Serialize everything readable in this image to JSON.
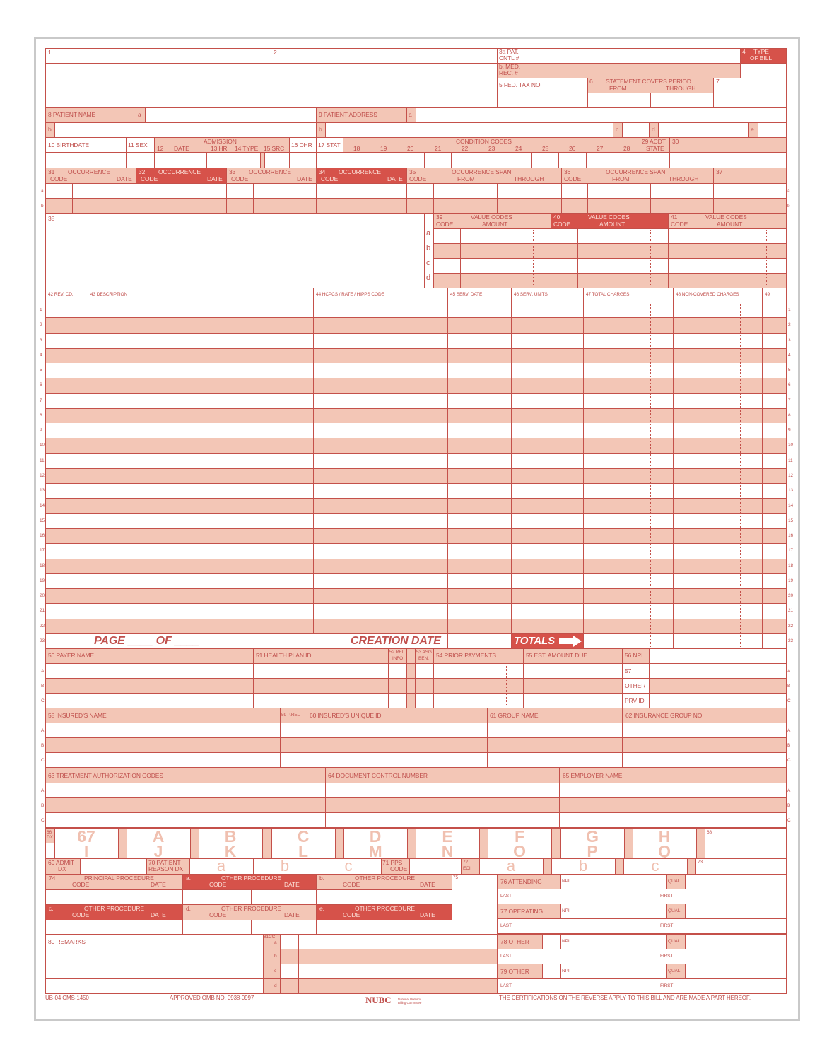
{
  "top": {
    "f1": "1",
    "f2": "2",
    "f3a_1": "3a PAT.",
    "f3a_2": "CNTL #",
    "f3b_1": "b. MED.",
    "f3b_2": "REC. #",
    "f4_num": "4",
    "f4_1": "TYPE",
    "f4_2": "OF BILL",
    "f5": "5 FED. TAX NO.",
    "f6_num": "6",
    "f6_title": "STATEMENT COVERS PERIOD",
    "f6_from": "FROM",
    "f6_through": "THROUGH",
    "f7": "7"
  },
  "patient": {
    "f8": "8 PATIENT  NAME",
    "f8a": "a",
    "f8b": "b",
    "f9": "9 PATIENT  ADDRESS",
    "f9a": "a",
    "f9b": "b",
    "f9c": "c",
    "f9d": "d",
    "f9e": "e"
  },
  "admission": {
    "f10": "10 BIRTHDATE",
    "f11": "11 SEX",
    "title": "ADMISSION",
    "f12": "12",
    "f12_date": "DATE",
    "f13": "13 HR",
    "f14": "14 TYPE",
    "f15": "15 SRC",
    "f16": "16 DHR",
    "f17": "17 STAT",
    "cond_title": "CONDITION CODES",
    "cond_codes": [
      "18",
      "19",
      "20",
      "21",
      "22",
      "23",
      "24",
      "25",
      "26",
      "27",
      "28"
    ],
    "f29_1": "29 ACDT",
    "f29_2": "STATE",
    "f30": "30"
  },
  "occurrence": [
    {
      "num": "31",
      "title": "OCCURRENCE",
      "code": "CODE",
      "date": "DATE"
    },
    {
      "num": "32",
      "title": "OCCURRENCE",
      "code": "CODE",
      "date": "DATE"
    },
    {
      "num": "33",
      "title": "OCCURRENCE",
      "code": "CODE",
      "date": "DATE"
    },
    {
      "num": "34",
      "title": "OCCURRENCE",
      "code": "CODE",
      "date": "DATE"
    }
  ],
  "occurrence_span": [
    {
      "num": "35",
      "title": "OCCURRENCE SPAN",
      "code": "CODE",
      "from": "FROM",
      "through": "THROUGH"
    },
    {
      "num": "36",
      "title": "OCCURRENCE SPAN",
      "code": "CODE",
      "from": "FROM",
      "through": "THROUGH"
    }
  ],
  "f37": "37",
  "row_letters_ab": [
    "a",
    "b"
  ],
  "f38": "38",
  "value_codes": {
    "row_letters": [
      "a",
      "b",
      "c",
      "d"
    ],
    "groups": [
      {
        "num": "39",
        "title": "VALUE CODES",
        "code": "CODE",
        "amount": "AMOUNT"
      },
      {
        "num": "40",
        "title": "VALUE CODES",
        "code": "CODE",
        "amount": "AMOUNT"
      },
      {
        "num": "41",
        "title": "VALUE CODES",
        "code": "CODE",
        "amount": "AMOUNT"
      }
    ]
  },
  "line_items": {
    "headers": [
      "42 REV. CD.",
      "43 DESCRIPTION",
      "44 HCPCS / RATE / HIPPS CODE",
      "45 SERV. DATE",
      "46 SERV. UNITS",
      "47 TOTAL CHARGES",
      "48 NON-COVERED CHARGES",
      "49"
    ],
    "line_numbers": [
      "1",
      "2",
      "3",
      "4",
      "5",
      "6",
      "7",
      "8",
      "9",
      "10",
      "11",
      "12",
      "13",
      "14",
      "15",
      "16",
      "17",
      "18",
      "19",
      "20",
      "21",
      "22",
      "23"
    ],
    "page_label": "PAGE ____  OF ____",
    "creation_date": "CREATION DATE",
    "totals": "TOTALS"
  },
  "payer": {
    "f50": "50 PAYER  NAME",
    "f51": "51 HEALTH PLAN ID",
    "f52_1": "52 REL.",
    "f52_2": "INFO",
    "f53_1": "53 ASG.",
    "f53_2": "BEN.",
    "f54": "54 PRIOR PAYMENTS",
    "f55": "55 EST. AMOUNT DUE",
    "f56": "56 NPI",
    "f57_1": "57",
    "f57_2": "OTHER",
    "f57_3": "PRV  ID",
    "row_letters": [
      "A",
      "B",
      "C"
    ]
  },
  "insured": {
    "f58": "58 INSURED'S NAME",
    "f59": "59 P.REL",
    "f60": "60 INSURED'S UNIQUE ID",
    "f61": "61 GROUP NAME",
    "f62": "62 INSURANCE GROUP NO."
  },
  "auth": {
    "f63": "63 TREATMENT  AUTHORIZATION  CODES",
    "f64": "64 DOCUMENT CONTROL NUMBER",
    "f65": "65 EMPLOYER NAME"
  },
  "diagnosis": {
    "f66_1": "66",
    "f66_2": "DX",
    "top_letters": [
      "67",
      "A",
      "B",
      "C",
      "D",
      "E",
      "F",
      "G",
      "H"
    ],
    "bottom_letters": [
      "I",
      "J",
      "K",
      "L",
      "M",
      "N",
      "O",
      "P",
      "Q"
    ],
    "f68": "68",
    "f69_1": "69 ADMIT",
    "f69_2": "DX",
    "f70_1": "70 PATIENT",
    "f70_2": "REASON DX",
    "reason_letters": [
      "a",
      "b",
      "c"
    ],
    "f71_1": "71 PPS",
    "f71_2": "CODE",
    "f72_1": "72",
    "f72_2": "ECI",
    "eci_letters": [
      "a",
      "b",
      "c"
    ],
    "f73": "73"
  },
  "procedures": {
    "groups": [
      {
        "prefix": "74",
        "title": "PRINCIPAL PROCEDURE",
        "code": "CODE",
        "date": "DATE"
      },
      {
        "prefix": "a.",
        "title": "OTHER PROCEDURE",
        "code": "CODE",
        "date": "DATE"
      },
      {
        "prefix": "b.",
        "title": "OTHER PROCEDURE",
        "code": "CODE",
        "date": "DATE"
      },
      {
        "prefix": "c.",
        "title": "OTHER PROCEDURE",
        "code": "CODE",
        "date": "DATE"
      },
      {
        "prefix": "d.",
        "title": "OTHER PROCEDURE",
        "code": "CODE",
        "date": "DATE"
      },
      {
        "prefix": "e.",
        "title": "OTHER PROCEDURE",
        "code": "CODE",
        "date": "DATE"
      }
    ],
    "f75": "75"
  },
  "physicians": [
    {
      "label": "76 ATTENDING",
      "npi": "NPI",
      "qual": "QUAL",
      "last": "LAST",
      "first": "FIRST"
    },
    {
      "label": "77 OPERATING",
      "npi": "NPI",
      "qual": "QUAL",
      "last": "LAST",
      "first": "FIRST"
    },
    {
      "label": "78 OTHER",
      "npi": "NPI",
      "qual": "QUAL",
      "last": "LAST",
      "first": "FIRST"
    },
    {
      "label": "79 OTHER",
      "npi": "NPI",
      "qual": "QUAL",
      "last": "LAST",
      "first": "FIRST"
    }
  ],
  "remarks": {
    "f80": "80 REMARKS",
    "f81": "81CC",
    "letters": [
      "a",
      "b",
      "c",
      "d"
    ]
  },
  "footer": {
    "form_id": "UB-04 CMS-1450",
    "omb": "APPROVED OMB NO. 0938-0997",
    "logo": "NUBC",
    "logo_sub": "National Uniform Billing Committee",
    "certification": "THE CERTIFICATIONS ON THE REVERSE APPLY TO THIS BILL AND ARE MADE A PART HEREOF."
  },
  "colors": {
    "line": "#c4504a",
    "pink": "#f3c6b6",
    "red": "#d6524a",
    "text": "#c0504d",
    "ghost": "#f0c0b0"
  }
}
